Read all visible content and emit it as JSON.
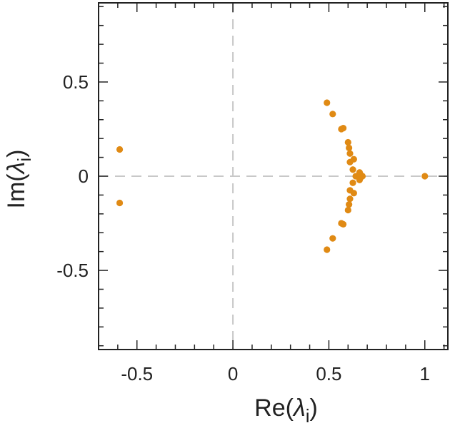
{
  "chart_data": {
    "type": "scatter",
    "xlabel_parts": [
      "Re(",
      "λ",
      "i",
      ")"
    ],
    "ylabel_parts": [
      "Im(",
      "λ",
      "i",
      ")"
    ],
    "xlim": [
      -0.7,
      1.12
    ],
    "ylim": [
      -0.92,
      0.92
    ],
    "xticks": [
      -0.5,
      0,
      0.5,
      1
    ],
    "xtick_labels": [
      "-0.5",
      "0",
      "0.5",
      "1"
    ],
    "yticks": [
      -0.5,
      0,
      0.5
    ],
    "ytick_labels": [
      "-0.5",
      "0",
      "0.5"
    ],
    "grid": false,
    "zero_lines": true,
    "point_color": "#e08a14",
    "axis_color": "#222222",
    "zero_line_color": "#c8c8c8",
    "points": [
      {
        "x": -0.59,
        "y": 0.142
      },
      {
        "x": -0.59,
        "y": -0.142
      },
      {
        "x": 0.49,
        "y": 0.39
      },
      {
        "x": 0.49,
        "y": -0.39
      },
      {
        "x": 0.52,
        "y": 0.33
      },
      {
        "x": 0.52,
        "y": -0.33
      },
      {
        "x": 0.565,
        "y": 0.25
      },
      {
        "x": 0.565,
        "y": -0.25
      },
      {
        "x": 0.575,
        "y": 0.255
      },
      {
        "x": 0.575,
        "y": -0.255
      },
      {
        "x": 0.6,
        "y": 0.18
      },
      {
        "x": 0.6,
        "y": -0.18
      },
      {
        "x": 0.605,
        "y": 0.15
      },
      {
        "x": 0.605,
        "y": -0.15
      },
      {
        "x": 0.61,
        "y": 0.12
      },
      {
        "x": 0.61,
        "y": -0.12
      },
      {
        "x": 0.63,
        "y": 0.09
      },
      {
        "x": 0.63,
        "y": -0.09
      },
      {
        "x": 0.61,
        "y": 0.075
      },
      {
        "x": 0.61,
        "y": -0.075
      },
      {
        "x": 0.625,
        "y": 0.035
      },
      {
        "x": 0.625,
        "y": -0.035
      },
      {
        "x": 0.64,
        "y": 0.0
      },
      {
        "x": 0.66,
        "y": 0.02
      },
      {
        "x": 0.66,
        "y": -0.02
      },
      {
        "x": 0.665,
        "y": 0.008
      },
      {
        "x": 0.665,
        "y": -0.008
      },
      {
        "x": 0.675,
        "y": 0.0
      },
      {
        "x": 1.0,
        "y": 0.0
      }
    ]
  }
}
